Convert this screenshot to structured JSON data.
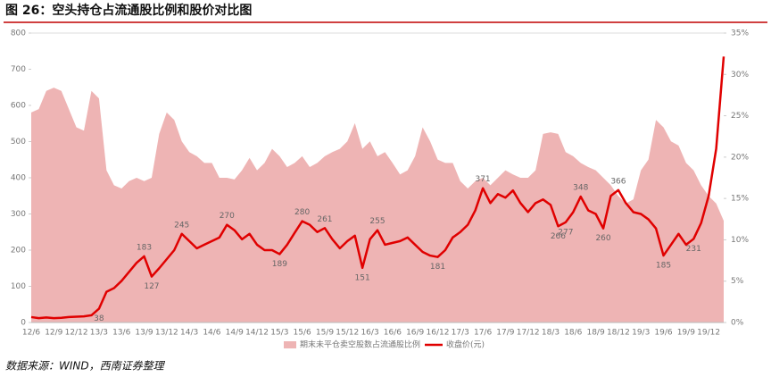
{
  "chart_data": {
    "type": "area-line",
    "title": "图 26：空头持仓占流通股比例和股价对比图",
    "source": "数据来源：WIND，西南证券整理",
    "categories": [
      "12/6",
      null,
      null,
      "12/9",
      null,
      null,
      "12/12",
      null,
      null,
      "13/3",
      null,
      null,
      "13/6",
      null,
      null,
      "13/9",
      null,
      null,
      "13/12",
      null,
      null,
      "14/3",
      null,
      null,
      "14/6",
      null,
      null,
      "14/9",
      null,
      null,
      "14/12",
      null,
      null,
      "15/3",
      null,
      null,
      "15/6",
      null,
      null,
      "15/9",
      null,
      null,
      "15/12",
      null,
      null,
      "16/3",
      null,
      null,
      "16/6",
      null,
      null,
      "16/9",
      null,
      null,
      "16/12",
      null,
      null,
      "17/3",
      null,
      null,
      "17/6",
      null,
      null,
      "17/9",
      null,
      null,
      "17/12",
      null,
      null,
      "18/3",
      null,
      null,
      "18/6",
      null,
      null,
      "18/9",
      null,
      null,
      "18/12",
      null,
      null,
      "19/3",
      null,
      null,
      "19/6",
      null,
      null,
      "19/9",
      null,
      null,
      "19/12",
      null,
      null
    ],
    "series": [
      {
        "name": "期末未平仓卖空股数占流通股比例",
        "color": "#eeb4b4",
        "axis": "y2",
        "mark": "area",
        "values": [
          25.4,
          25.8,
          28.0,
          28.4,
          28.0,
          25.8,
          23.6,
          23.2,
          28.0,
          27.1,
          18.4,
          16.6,
          16.2,
          17.1,
          17.5,
          17.1,
          17.5,
          22.8,
          25.4,
          24.5,
          21.9,
          20.6,
          20.1,
          19.3,
          19.3,
          17.5,
          17.5,
          17.3,
          18.4,
          19.9,
          18.4,
          19.3,
          21.0,
          20.1,
          18.8,
          19.3,
          20.1,
          18.8,
          19.3,
          20.1,
          20.6,
          21.0,
          21.9,
          24.1,
          21.0,
          21.9,
          20.1,
          20.6,
          19.3,
          17.9,
          18.4,
          20.1,
          23.6,
          21.9,
          19.7,
          19.3,
          19.3,
          17.1,
          16.2,
          17.1,
          17.5,
          16.6,
          17.5,
          18.4,
          17.9,
          17.5,
          17.5,
          18.4,
          22.8,
          23.0,
          22.8,
          20.6,
          20.1,
          19.3,
          18.8,
          18.4,
          17.5,
          16.6,
          15.3,
          14.4,
          14.9,
          18.4,
          19.7,
          24.5,
          23.6,
          21.9,
          21.4,
          19.3,
          18.4,
          16.6,
          15.3,
          14.4,
          12.3
        ]
      },
      {
        "name": "收盘价(元)",
        "color": "#e00000",
        "mark": "line",
        "values": [
          15,
          12,
          14,
          12,
          13,
          15,
          16,
          17,
          20,
          38,
          85,
          95,
          115,
          140,
          165,
          183,
          127,
          150,
          175,
          200,
          245,
          225,
          205,
          215,
          225,
          235,
          270,
          255,
          230,
          245,
          215,
          200,
          200,
          189,
          215,
          248,
          280,
          270,
          250,
          261,
          230,
          205,
          225,
          240,
          151,
          230,
          255,
          215,
          220,
          225,
          235,
          215,
          195,
          185,
          181,
          200,
          235,
          250,
          270,
          310,
          371,
          330,
          355,
          345,
          365,
          330,
          305,
          330,
          340,
          325,
          266,
          277,
          305,
          348,
          310,
          300,
          260,
          350,
          366,
          330,
          305,
          300,
          285,
          260,
          185,
          215,
          245,
          215,
          231,
          275,
          350,
          480,
          735
        ],
        "value_labels": [
          null,
          null,
          null,
          null,
          null,
          null,
          null,
          null,
          null,
          "38",
          null,
          null,
          null,
          null,
          null,
          "183",
          "127",
          null,
          null,
          null,
          "245",
          null,
          null,
          null,
          null,
          null,
          "270",
          null,
          null,
          null,
          null,
          null,
          null,
          "189",
          null,
          null,
          "280",
          null,
          null,
          "261",
          null,
          null,
          null,
          null,
          "151",
          null,
          "255",
          null,
          null,
          null,
          null,
          null,
          null,
          null,
          "181",
          null,
          null,
          null,
          null,
          null,
          "371",
          null,
          null,
          null,
          null,
          null,
          null,
          null,
          null,
          null,
          "266",
          "277",
          null,
          "348",
          null,
          null,
          "260",
          null,
          "366",
          null,
          null,
          null,
          null,
          null,
          "185",
          null,
          null,
          null,
          "231",
          null,
          null,
          null,
          null
        ]
      }
    ],
    "ylim": [
      0,
      800
    ],
    "yticks": [
      0,
      100,
      200,
      300,
      400,
      500,
      600,
      700,
      800
    ],
    "y2lim": [
      0,
      35
    ],
    "y2ticks": [
      {
        "value": 0,
        "label": "0%"
      },
      {
        "value": 5,
        "label": "5%"
      },
      {
        "value": 10,
        "label": "10%"
      },
      {
        "value": 15,
        "label": "15%"
      },
      {
        "value": 20,
        "label": "20%"
      },
      {
        "value": 25,
        "label": "25%"
      },
      {
        "value": 30,
        "label": "30%"
      },
      {
        "value": 35,
        "label": "35%"
      }
    ],
    "legend": "bottom"
  }
}
